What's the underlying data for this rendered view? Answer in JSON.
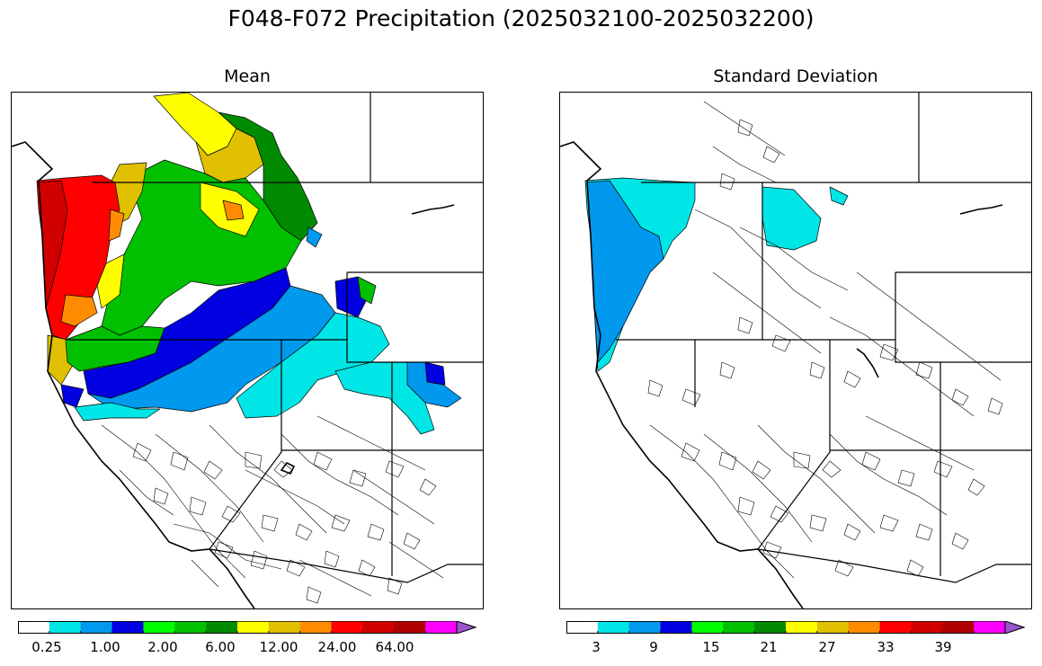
{
  "title": "F048-F072 Precipitation (2025032100-2025032200)",
  "panels": [
    {
      "title": "Mean",
      "colors": [
        "#ffffff",
        "#00e5e5",
        "#0099ee",
        "#0000e0",
        "#00ff00",
        "#00c000",
        "#008a00",
        "#ffff00",
        "#e0c000",
        "#ff8c00",
        "#ff0000",
        "#d00000",
        "#b00000",
        "#ff00ff",
        "#9955cc"
      ],
      "tick_labels": [
        "0.25",
        "1.00",
        "2.00",
        "6.00",
        "12.00",
        "24.00",
        "64.00"
      ]
    },
    {
      "title": "Standard Deviation",
      "colors": [
        "#ffffff",
        "#00e5e5",
        "#0099ee",
        "#0000e0",
        "#00ff00",
        "#00c000",
        "#008a00",
        "#ffff00",
        "#e0c000",
        "#ff8c00",
        "#ff0000",
        "#d00000",
        "#b00000",
        "#ff00ff",
        "#9955cc"
      ],
      "tick_labels": [
        "3",
        "9",
        "15",
        "21",
        "27",
        "33",
        "39"
      ]
    }
  ]
}
